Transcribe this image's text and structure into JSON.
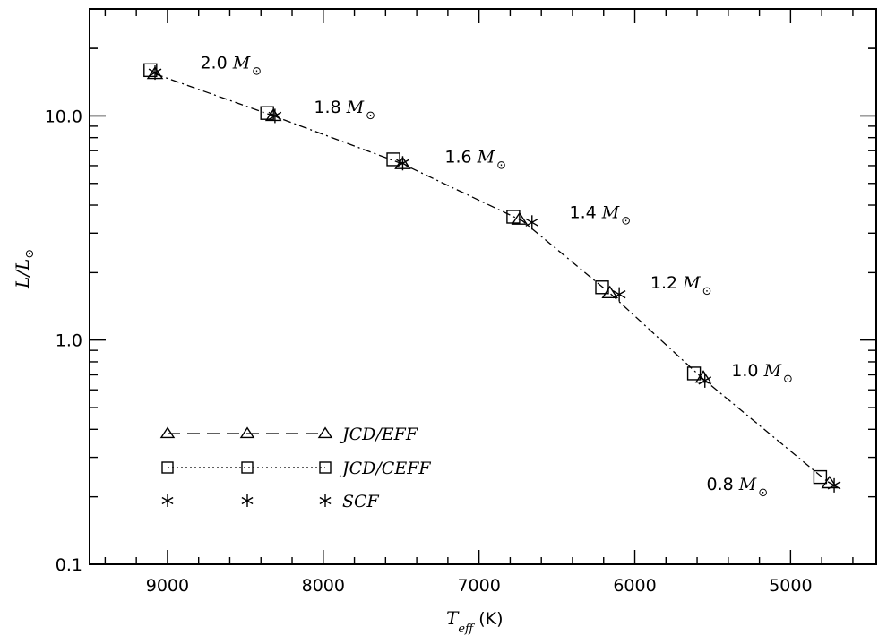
{
  "chart_data": {
    "type": "scatter",
    "title": "",
    "xlabel_main": "T",
    "xlabel_sub": "eff",
    "xlabel_unit": "(K)",
    "ylabel_main": "L/L",
    "ylabel_sub": "⊙",
    "xscale": "linear",
    "yscale": "log",
    "xlim": [
      9500,
      4450
    ],
    "ylim": [
      0.1,
      30
    ],
    "x_ticks": [
      9000,
      8000,
      7000,
      6000,
      5000
    ],
    "x_tick_labels": [
      "9000",
      "8000",
      "7000",
      "6000",
      "5000"
    ],
    "y_ticks": [
      0.1,
      1.0,
      10.0
    ],
    "y_tick_labels": [
      "0.1",
      "1.0",
      "10.0"
    ],
    "series": [
      {
        "name": "JCD/EFF",
        "marker": "triangle",
        "line": "dashed",
        "x": [
          9080,
          8320,
          7490,
          6740,
          6160,
          5560,
          4750
        ],
        "y": [
          15.4,
          10.0,
          6.1,
          3.45,
          1.62,
          0.68,
          0.23
        ]
      },
      {
        "name": "JCD/CEFF",
        "marker": "square",
        "line": "dotted",
        "x": [
          9110,
          8360,
          7550,
          6780,
          6210,
          5620,
          4810
        ],
        "y": [
          16.0,
          10.3,
          6.4,
          3.55,
          1.72,
          0.71,
          0.245
        ]
      },
      {
        "name": "SCF",
        "marker": "asterisk",
        "line": "none",
        "x": [
          9080,
          8310,
          7490,
          6660,
          6100,
          5550,
          4720
        ],
        "y": [
          15.6,
          10.0,
          6.15,
          3.35,
          1.6,
          0.66,
          0.225
        ]
      }
    ],
    "track_line": {
      "style": "dash-dot",
      "x": [
        9080,
        8320,
        7490,
        6720,
        6160,
        5560,
        4750
      ],
      "y": [
        15.4,
        10.0,
        6.1,
        3.4,
        1.62,
        0.67,
        0.23
      ]
    },
    "annotations": [
      {
        "value": "2.0",
        "unit": "M",
        "sub": "⊙",
        "x": 8790,
        "y": 16.3
      },
      {
        "value": "1.8",
        "unit": "M",
        "sub": "⊙",
        "x": 8060,
        "y": 10.3
      },
      {
        "value": "1.6",
        "unit": "M",
        "sub": "⊙",
        "x": 7220,
        "y": 6.2
      },
      {
        "value": "1.4",
        "unit": "M",
        "sub": "⊙",
        "x": 6420,
        "y": 3.5
      },
      {
        "value": "1.2",
        "unit": "M",
        "sub": "⊙",
        "x": 5900,
        "y": 1.7
      },
      {
        "value": "1.0",
        "unit": "M",
        "sub": "⊙",
        "x": 5380,
        "y": 0.69
      },
      {
        "value": "0.8",
        "unit": "M",
        "sub": "⊙",
        "x": 5540,
        "y": 0.215
      }
    ],
    "legend": {
      "placement": "lower-left",
      "entries": [
        "JCD/EFF",
        "JCD/CEFF",
        "SCF"
      ]
    }
  }
}
